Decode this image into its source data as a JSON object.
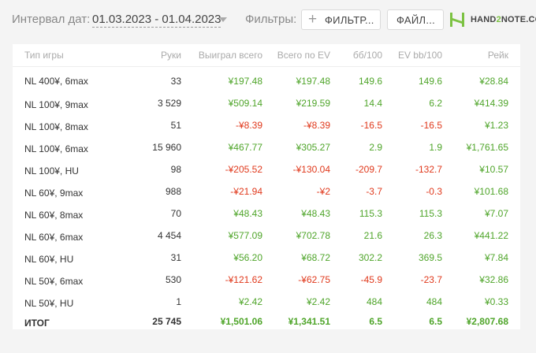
{
  "header": {
    "date_label": "Интервал дат:",
    "date_value": "01.03.2023 - 01.04.2023",
    "filters_label": "Фильтры:",
    "filter_button": "ФИЛЬТР...",
    "files_button": "ФАЙЛ...",
    "logo_text_a": "HAND",
    "logo_text_b": "2",
    "logo_text_c": "NOTE.CO",
    "logo_color": "#7cc242"
  },
  "table": {
    "columns": [
      "Тип игры",
      "Руки",
      "Выиграл всего",
      "Всего по EV",
      "бб/100",
      "EV bb/100",
      "Рейк"
    ],
    "rows": [
      [
        "NL 400¥, 6max",
        "33",
        "¥197.48",
        "¥197.48",
        "149.6",
        "149.6",
        "¥28.84"
      ],
      [
        "NL 100¥, 9max",
        "3 529",
        "¥509.14",
        "¥219.59",
        "14.4",
        "6.2",
        "¥414.39"
      ],
      [
        "NL 100¥, 8max",
        "51",
        "-¥8.39",
        "-¥8.39",
        "-16.5",
        "-16.5",
        "¥1.23"
      ],
      [
        "NL 100¥, 6max",
        "15 960",
        "¥467.77",
        "¥305.27",
        "2.9",
        "1.9",
        "¥1,761.65"
      ],
      [
        "NL 100¥, HU",
        "98",
        "-¥205.52",
        "-¥130.04",
        "-209.7",
        "-132.7",
        "¥10.57"
      ],
      [
        "NL 60¥, 9max",
        "988",
        "-¥21.94",
        "-¥2",
        "-3.7",
        "-0.3",
        "¥101.68"
      ],
      [
        "NL 60¥, 8max",
        "70",
        "¥48.43",
        "¥48.43",
        "115.3",
        "115.3",
        "¥7.07"
      ],
      [
        "NL 60¥, 6max",
        "4 454",
        "¥577.09",
        "¥702.78",
        "21.6",
        "26.3",
        "¥441.22"
      ],
      [
        "NL 60¥, HU",
        "31",
        "¥56.20",
        "¥68.72",
        "302.2",
        "369.5",
        "¥7.84"
      ],
      [
        "NL 50¥, 6max",
        "530",
        "-¥121.62",
        "-¥62.75",
        "-45.9",
        "-23.7",
        "¥32.86"
      ],
      [
        "NL 50¥, HU",
        "1",
        "¥2.42",
        "¥2.42",
        "484",
        "484",
        "¥0.33"
      ]
    ],
    "total": [
      "ИТОГ",
      "25 745",
      "¥1,501.06",
      "¥1,341.51",
      "6.5",
      "6.5",
      "¥2,807.68"
    ],
    "colors": {
      "positive": "#4fa52a",
      "negative": "#e0391c"
    }
  }
}
